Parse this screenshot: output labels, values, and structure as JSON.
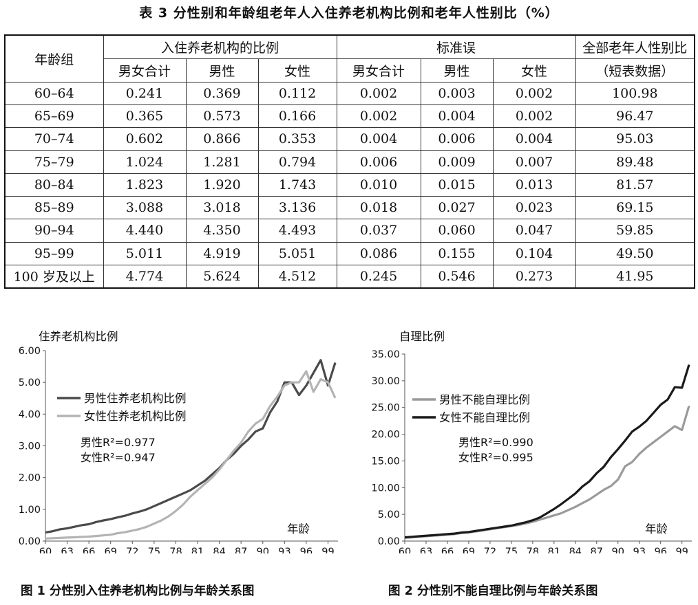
{
  "table": {
    "title": "表 3  分性别和年龄组老年人入住养老机构比例和老年人性别比（%）",
    "header": {
      "age_group": "年龄组",
      "group1": "入住养老机构的比例",
      "group2": "标准误",
      "group3": "全部老年人性别比",
      "sub": [
        "男女合计",
        "男性",
        "女性",
        "男女合计",
        "男性",
        "女性"
      ],
      "group3_sub": "（短表数据）"
    },
    "rows": [
      {
        "age": "60–64",
        "cells": [
          "0.241",
          "0.369",
          "0.112",
          "0.002",
          "0.003",
          "0.002",
          "100.98"
        ]
      },
      {
        "age": "65–69",
        "cells": [
          "0.365",
          "0.573",
          "0.166",
          "0.002",
          "0.004",
          "0.002",
          "96.47"
        ]
      },
      {
        "age": "70–74",
        "cells": [
          "0.602",
          "0.866",
          "0.353",
          "0.004",
          "0.006",
          "0.004",
          "95.03"
        ]
      },
      {
        "age": "75–79",
        "cells": [
          "1.024",
          "1.281",
          "0.794",
          "0.006",
          "0.009",
          "0.007",
          "89.48"
        ]
      },
      {
        "age": "80–84",
        "cells": [
          "1.823",
          "1.920",
          "1.743",
          "0.010",
          "0.015",
          "0.013",
          "81.57"
        ]
      },
      {
        "age": "85–89",
        "cells": [
          "3.088",
          "3.018",
          "3.136",
          "0.018",
          "0.027",
          "0.023",
          "69.15"
        ]
      },
      {
        "age": "90–94",
        "cells": [
          "4.440",
          "4.350",
          "4.493",
          "0.037",
          "0.060",
          "0.047",
          "59.85"
        ]
      },
      {
        "age": "95–99",
        "cells": [
          "5.011",
          "4.919",
          "5.051",
          "0.086",
          "0.155",
          "0.104",
          "49.50"
        ]
      },
      {
        "age": "100 岁及以上",
        "cells": [
          "4.774",
          "5.624",
          "4.512",
          "0.245",
          "0.546",
          "0.273",
          "41.95"
        ]
      }
    ]
  },
  "chart_data": [
    {
      "type": "line",
      "ylabel": "住养老机构比例",
      "xlabel": "年龄",
      "ylim": [
        0,
        6
      ],
      "yticks": [
        "0.00",
        "1.00",
        "2.00",
        "3.00",
        "4.00",
        "5.00",
        "6.00"
      ],
      "xticks": [
        "60",
        "63",
        "66",
        "69",
        "72",
        "75",
        "78",
        "81",
        "84",
        "87",
        "90",
        "93",
        "96",
        "99"
      ],
      "x": [
        60,
        61,
        62,
        63,
        64,
        65,
        66,
        67,
        68,
        69,
        70,
        71,
        72,
        73,
        74,
        75,
        76,
        77,
        78,
        79,
        80,
        81,
        82,
        83,
        84,
        85,
        86,
        87,
        88,
        89,
        90,
        91,
        92,
        93,
        94,
        95,
        96,
        97,
        98,
        99,
        100
      ],
      "series": [
        {
          "name": "男性住养老机构比例",
          "color": "#4a4a4a",
          "values": [
            0.27,
            0.31,
            0.37,
            0.4,
            0.45,
            0.5,
            0.53,
            0.6,
            0.65,
            0.69,
            0.75,
            0.8,
            0.87,
            0.93,
            1.0,
            1.1,
            1.2,
            1.3,
            1.4,
            1.5,
            1.6,
            1.75,
            1.9,
            2.1,
            2.3,
            2.55,
            2.75,
            3.0,
            3.2,
            3.45,
            3.55,
            4.05,
            4.4,
            5.0,
            5.0,
            4.6,
            4.9,
            5.3,
            5.7,
            4.9,
            5.62
          ]
        },
        {
          "name": "女性住养老机构比例",
          "color": "#b4b4b4",
          "values": [
            0.08,
            0.09,
            0.1,
            0.11,
            0.12,
            0.13,
            0.14,
            0.16,
            0.18,
            0.2,
            0.25,
            0.28,
            0.33,
            0.38,
            0.45,
            0.55,
            0.65,
            0.78,
            0.95,
            1.15,
            1.4,
            1.6,
            1.8,
            2.0,
            2.25,
            2.55,
            2.85,
            3.1,
            3.45,
            3.7,
            3.85,
            4.25,
            4.55,
            4.9,
            5.0,
            5.0,
            5.35,
            4.7,
            5.1,
            5.0,
            4.51
          ]
        }
      ],
      "annotations": [
        "男性R²=0.977",
        "女性R²=0.947"
      ]
    },
    {
      "type": "line",
      "ylabel": "自理比例",
      "xlabel": "年龄",
      "ylim": [
        0,
        35
      ],
      "yticks": [
        "0.00",
        "5.00",
        "10.00",
        "15.00",
        "20.00",
        "25.00",
        "30.00",
        "35.00"
      ],
      "xticks": [
        "60",
        "63",
        "66",
        "69",
        "72",
        "75",
        "78",
        "81",
        "84",
        "87",
        "90",
        "93",
        "96",
        "99"
      ],
      "x": [
        60,
        61,
        62,
        63,
        64,
        65,
        66,
        67,
        68,
        69,
        70,
        71,
        72,
        73,
        74,
        75,
        76,
        77,
        78,
        79,
        80,
        81,
        82,
        83,
        84,
        85,
        86,
        87,
        88,
        89,
        90,
        91,
        92,
        93,
        94,
        95,
        96,
        97,
        98,
        99,
        100
      ],
      "series": [
        {
          "name": "男性不能自理比例",
          "color": "#9a9a9a",
          "values": [
            0.6,
            0.7,
            0.8,
            0.9,
            1.0,
            1.1,
            1.2,
            1.3,
            1.5,
            1.6,
            1.8,
            2.0,
            2.2,
            2.4,
            2.6,
            2.8,
            3.0,
            3.3,
            3.6,
            4.0,
            4.4,
            4.8,
            5.2,
            5.8,
            6.4,
            7.1,
            7.8,
            8.7,
            9.6,
            10.3,
            11.5,
            14.0,
            14.8,
            16.3,
            17.5,
            18.5,
            19.5,
            20.5,
            21.5,
            20.8,
            25.3
          ]
        },
        {
          "name": "女性不能自理比例",
          "color": "#1a1a1a",
          "values": [
            0.7,
            0.8,
            0.9,
            1.0,
            1.1,
            1.2,
            1.3,
            1.4,
            1.6,
            1.7,
            1.9,
            2.1,
            2.3,
            2.5,
            2.7,
            2.9,
            3.2,
            3.5,
            3.9,
            4.4,
            5.2,
            6.0,
            6.9,
            7.9,
            8.9,
            10.2,
            11.2,
            12.7,
            13.9,
            15.7,
            17.2,
            18.8,
            20.5,
            21.4,
            22.5,
            24.0,
            25.5,
            26.5,
            28.8,
            28.7,
            33.0
          ]
        }
      ],
      "annotations": [
        "男性R²=0.990",
        "女性R²=0.995"
      ]
    }
  ],
  "captions": {
    "fig1": "图 1  分性别入住养老机构比例与年龄关系图",
    "fig2": "图 2  分性别不能自理比例与年龄关系图"
  }
}
